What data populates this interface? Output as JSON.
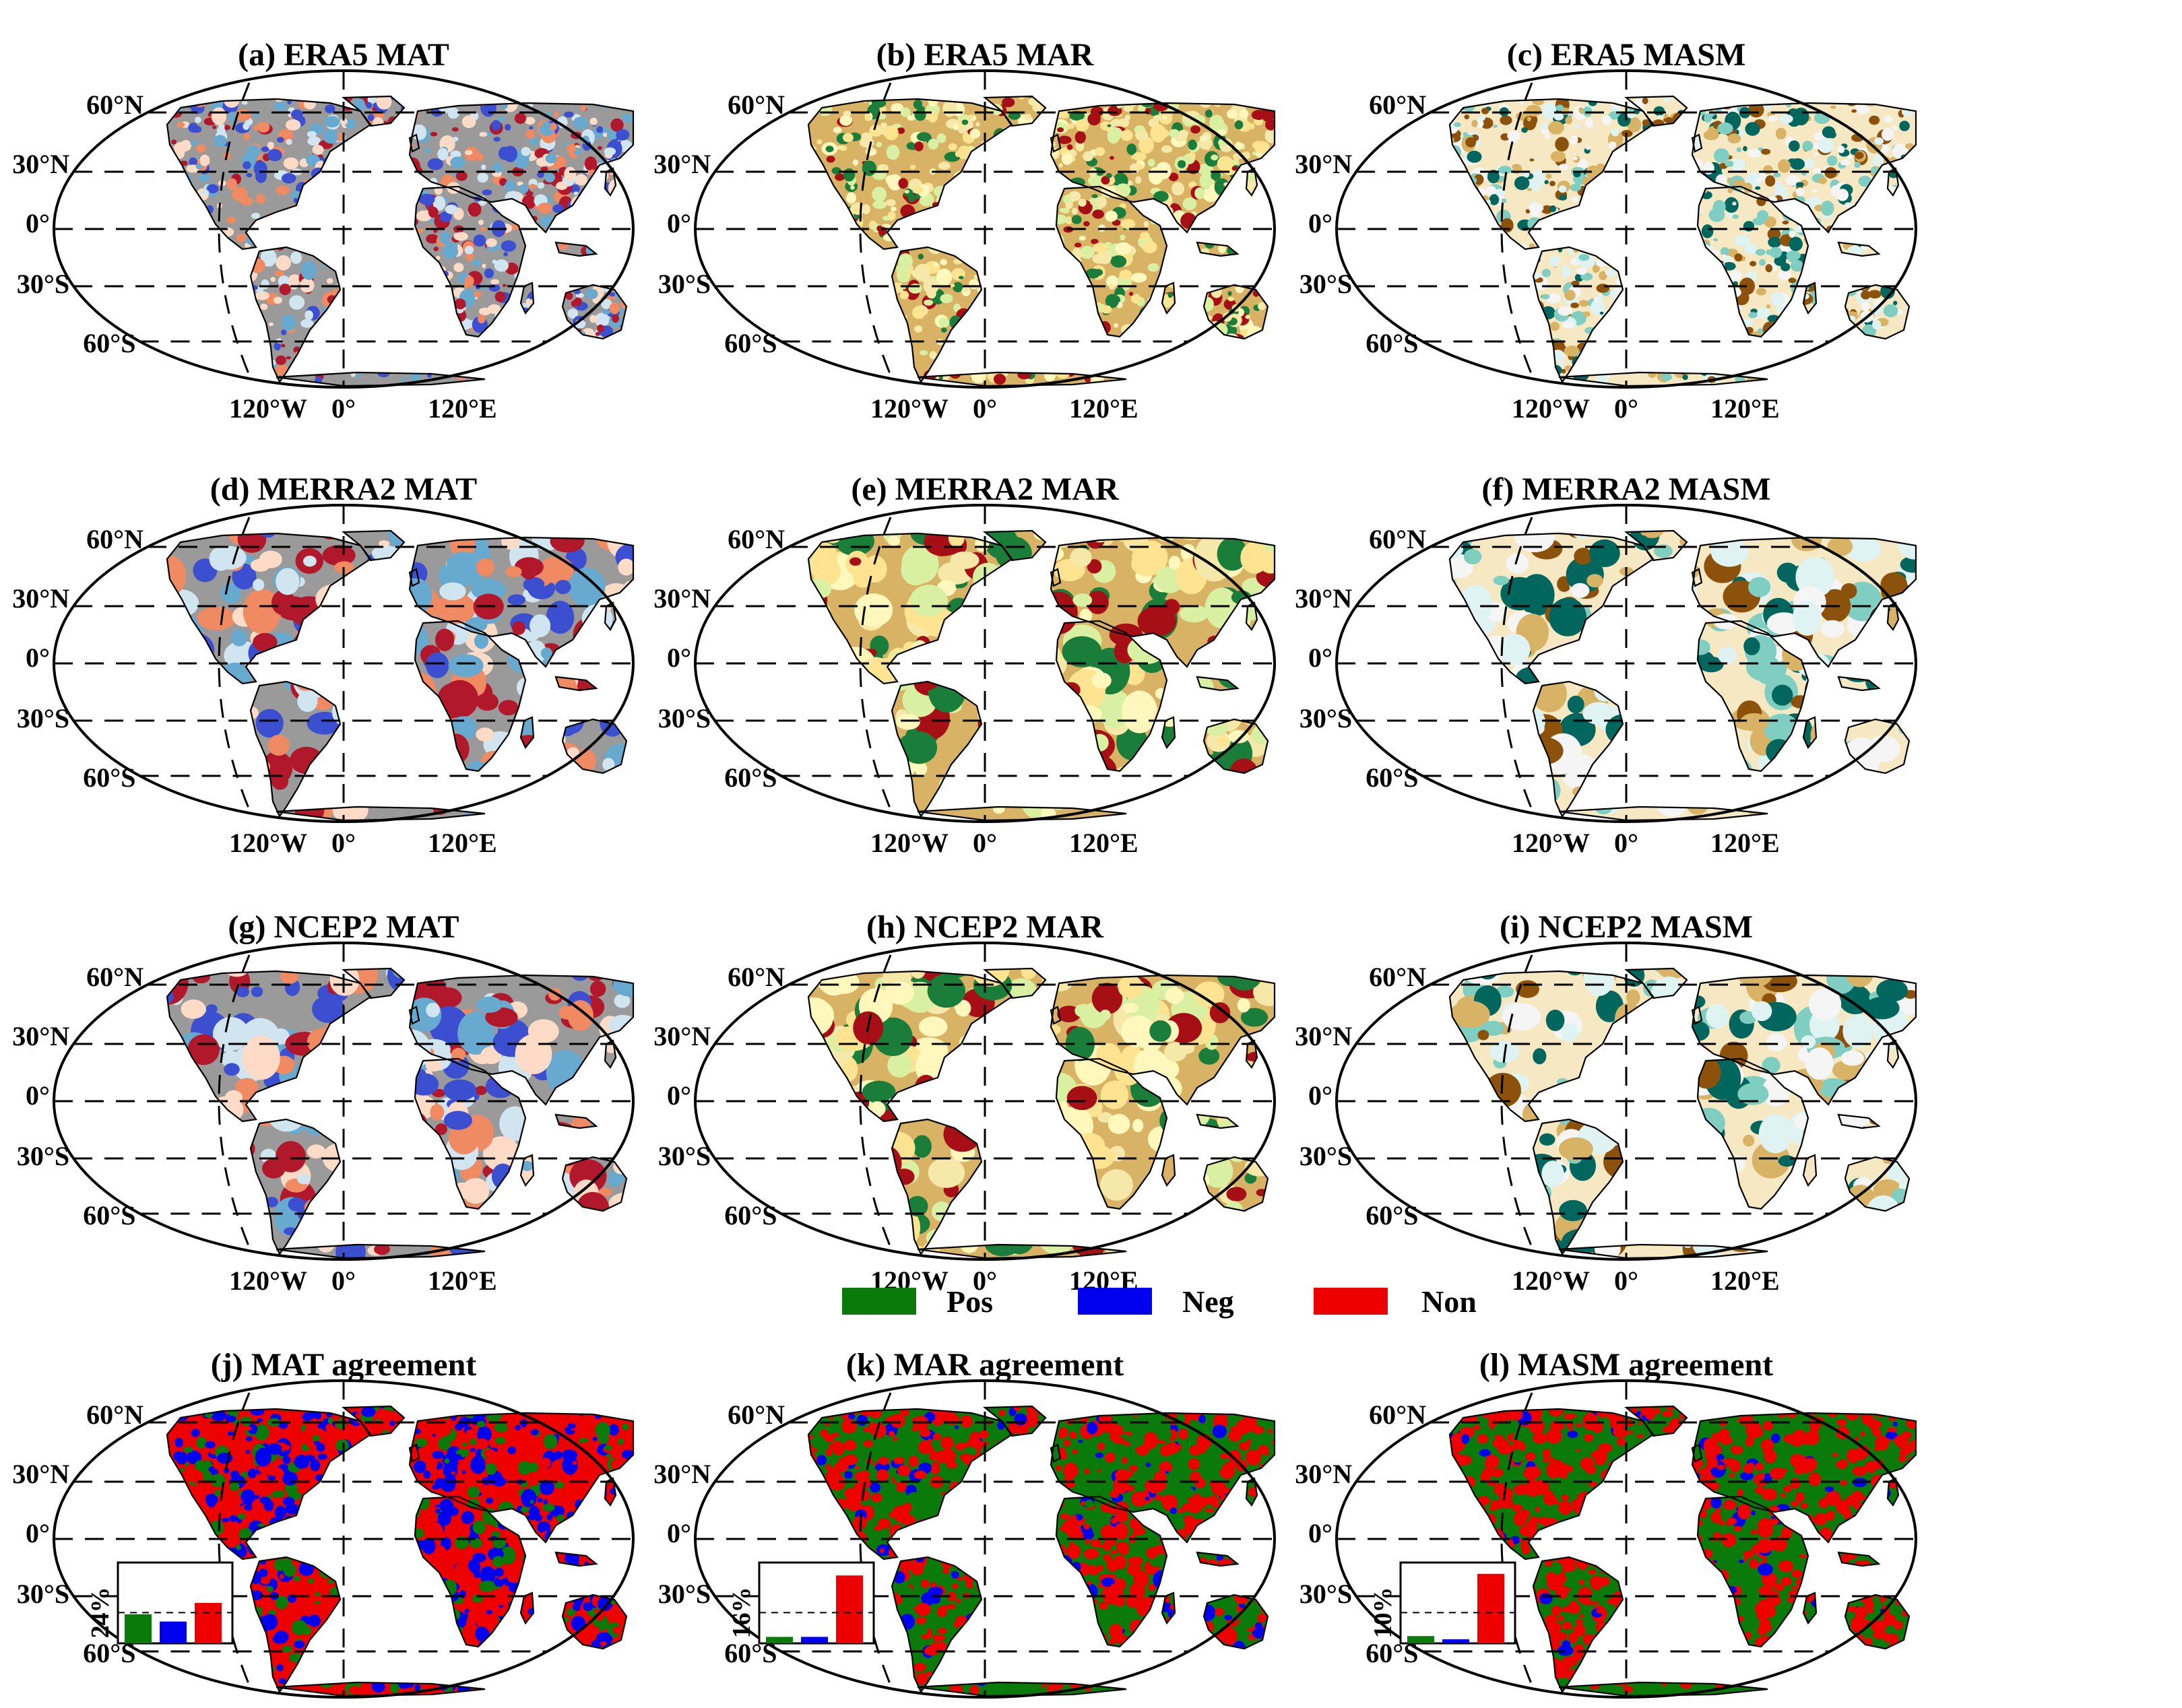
{
  "panels": [
    {
      "id": "a",
      "title": "(a) ERA5 MAT",
      "palette": "mat",
      "row": 0,
      "col": 0,
      "texture": "fine"
    },
    {
      "id": "b",
      "title": "(b) ERA5 MAR",
      "palette": "mar",
      "row": 0,
      "col": 1,
      "texture": "fine"
    },
    {
      "id": "c",
      "title": "(c) ERA5 MASM",
      "palette": "masm",
      "row": 0,
      "col": 2,
      "texture": "fine"
    },
    {
      "id": "d",
      "title": "(d) MERRA2 MAT",
      "palette": "mat",
      "row": 1,
      "col": 0,
      "texture": "coarse"
    },
    {
      "id": "e",
      "title": "(e) MERRA2 MAR",
      "palette": "mar",
      "row": 1,
      "col": 1,
      "texture": "coarse"
    },
    {
      "id": "f",
      "title": "(f) MERRA2 MASM",
      "palette": "masm",
      "row": 1,
      "col": 2,
      "texture": "coarse"
    },
    {
      "id": "g",
      "title": "(g) NCEP2 MAT",
      "palette": "mat",
      "row": 2,
      "col": 0,
      "texture": "coarse"
    },
    {
      "id": "h",
      "title": "(h) NCEP2 MAR",
      "palette": "mar",
      "row": 2,
      "col": 1,
      "texture": "coarse"
    },
    {
      "id": "i",
      "title": "(i) NCEP2 MASM",
      "palette": "masm",
      "row": 2,
      "col": 2,
      "texture": "coarse"
    },
    {
      "id": "j",
      "title": "(j) MAT agreement",
      "palette": "agree_mat",
      "row": 3,
      "col": 0,
      "texture": "fine",
      "inset": {
        "label": "24%",
        "values": [
          0.36,
          0.27,
          0.5
        ]
      }
    },
    {
      "id": "k",
      "title": "(k) MAR agreement",
      "palette": "agree",
      "row": 3,
      "col": 1,
      "texture": "fine",
      "inset": {
        "label": "16%",
        "values": [
          0.08,
          0.08,
          0.84
        ]
      }
    },
    {
      "id": "l",
      "title": "(l) MASM agreement",
      "palette": "agree",
      "row": 3,
      "col": 2,
      "texture": "fine",
      "inset": {
        "label": "10%",
        "values": [
          0.09,
          0.05,
          0.86
        ]
      }
    }
  ],
  "lat_labels": [
    "60°N",
    "30°N",
    "0°",
    "30°S",
    "60°S"
  ],
  "lon_labels": [
    "120°W",
    "0°",
    "120°E"
  ],
  "legend": [
    {
      "label": "Pos",
      "color": "#0a7a0a"
    },
    {
      "label": "Neg",
      "color": "#0000ee"
    },
    {
      "label": "Non",
      "color": "#ee0000"
    }
  ],
  "palettes": {
    "mat": [
      "#b2182b",
      "#ef8a62",
      "#fddbc7",
      "#d1e5f0",
      "#67a9cf",
      "#3b4fd0",
      "#9a9a9a"
    ],
    "mar": [
      "#fff7bc",
      "#fee391",
      "#f6e8a8",
      "#d9f0a3",
      "#1a7d3a",
      "#a50f15",
      "#d8b365"
    ],
    "masm": [
      "#f5f5f5",
      "#e0f3f3",
      "#80cdc1",
      "#01665e",
      "#8c510a",
      "#d8b365",
      "#f6e8c3"
    ],
    "agree_mat": [
      "#0000ee",
      "#0a7a0a",
      "#ee0000"
    ],
    "agree": [
      "#ee0000",
      "#0000ee",
      "#0a7a0a"
    ]
  }
}
